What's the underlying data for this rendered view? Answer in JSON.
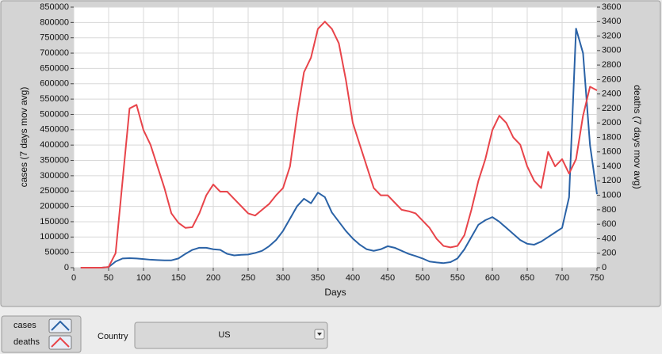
{
  "chart_data": {
    "type": "line",
    "x_label": "Days",
    "y_label": "cases  (7 days mov avg)",
    "y2_label": "deaths  (7 days mov avg)",
    "x": [
      10,
      20,
      30,
      40,
      50,
      60,
      70,
      80,
      90,
      100,
      110,
      120,
      130,
      140,
      150,
      160,
      170,
      180,
      190,
      200,
      210,
      220,
      230,
      240,
      250,
      260,
      270,
      280,
      290,
      300,
      310,
      320,
      330,
      340,
      350,
      360,
      370,
      380,
      390,
      400,
      410,
      420,
      430,
      440,
      450,
      460,
      470,
      480,
      490,
      500,
      510,
      520,
      530,
      540,
      550,
      560,
      570,
      580,
      590,
      600,
      610,
      620,
      630,
      640,
      650,
      660,
      670,
      680,
      690,
      700,
      710,
      720,
      730,
      740,
      750
    ],
    "series": [
      {
        "name": "cases",
        "color": "#2a62a6",
        "values": [
          0,
          0,
          0,
          0,
          2000,
          20000,
          30000,
          31000,
          30000,
          28000,
          26000,
          25000,
          24000,
          24000,
          30000,
          45000,
          58000,
          65000,
          65000,
          60000,
          58000,
          45000,
          40000,
          42000,
          43000,
          48000,
          55000,
          70000,
          90000,
          120000,
          160000,
          200000,
          225000,
          210000,
          245000,
          230000,
          180000,
          150000,
          120000,
          95000,
          75000,
          60000,
          55000,
          60000,
          70000,
          65000,
          55000,
          45000,
          38000,
          30000,
          20000,
          17000,
          15000,
          18000,
          30000,
          60000,
          100000,
          140000,
          155000,
          165000,
          150000,
          130000,
          110000,
          90000,
          78000,
          75000,
          85000,
          100000,
          115000,
          130000,
          230000,
          780000,
          700000,
          400000,
          240000
        ]
      },
      {
        "name": "deaths",
        "color": "#e8444a",
        "axis": "y2",
        "values": [
          0,
          0,
          0,
          0,
          10,
          200,
          1200,
          2200,
          2250,
          1900,
          1700,
          1400,
          1100,
          750,
          620,
          550,
          560,
          750,
          1000,
          1150,
          1050,
          1050,
          950,
          850,
          750,
          720,
          800,
          880,
          1000,
          1100,
          1400,
          2100,
          2700,
          2900,
          3300,
          3400,
          3300,
          3100,
          2600,
          2000,
          1700,
          1400,
          1100,
          1000,
          1000,
          900,
          800,
          780,
          750,
          650,
          550,
          400,
          300,
          280,
          300,
          450,
          800,
          1200,
          1500,
          1900,
          2100,
          2000,
          1800,
          1700,
          1400,
          1200,
          1100,
          1600,
          1400,
          1500,
          1300,
          1500,
          2100,
          2500,
          2450
        ]
      }
    ],
    "xlim": [
      0,
      750
    ],
    "xticks": [
      0,
      50,
      100,
      150,
      200,
      250,
      300,
      350,
      400,
      450,
      500,
      550,
      600,
      650,
      700,
      750
    ],
    "ylim": [
      0,
      850000
    ],
    "yticks": [
      0,
      50000,
      100000,
      150000,
      200000,
      250000,
      300000,
      350000,
      400000,
      450000,
      500000,
      550000,
      600000,
      650000,
      700000,
      750000,
      800000,
      850000
    ],
    "y2lim": [
      0,
      3600
    ],
    "y2ticks": [
      0,
      200,
      400,
      600,
      800,
      1000,
      1200,
      1400,
      1600,
      1800,
      2000,
      2200,
      2400,
      2600,
      2800,
      3000,
      3200,
      3400,
      3600
    ],
    "grid": true
  },
  "controls": {
    "country_label": "Country",
    "country_value": "US"
  }
}
